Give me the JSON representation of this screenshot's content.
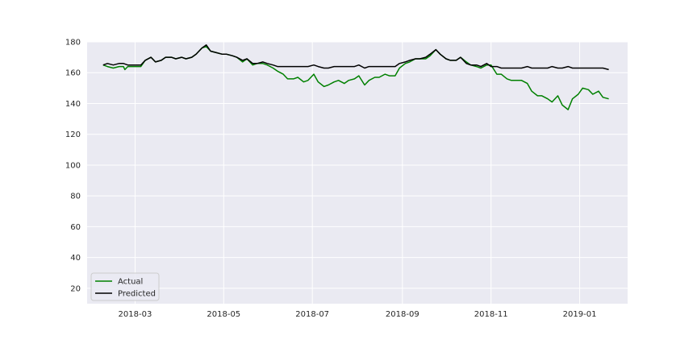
{
  "chart_data": {
    "type": "line",
    "title": "",
    "xlabel": "",
    "ylabel": "",
    "x_ticks": [
      "2018-03",
      "2018-05",
      "2018-07",
      "2018-09",
      "2018-11",
      "2019-01"
    ],
    "y_ticks": [
      20,
      40,
      60,
      80,
      100,
      120,
      140,
      160,
      180
    ],
    "xlim": [
      "2018-01-27",
      "2019-02-03"
    ],
    "ylim": [
      10,
      180
    ],
    "grid": true,
    "legend_position": "lower-left",
    "series": [
      {
        "name": "Actual",
        "color": "#008000",
        "points": [
          [
            "2018-02-07",
            165
          ],
          [
            "2018-02-10",
            164
          ],
          [
            "2018-02-14",
            163
          ],
          [
            "2018-02-18",
            164
          ],
          [
            "2018-02-21",
            164
          ],
          [
            "2018-02-22",
            162
          ],
          [
            "2018-02-24",
            164
          ],
          [
            "2018-02-28",
            164
          ],
          [
            "2018-03-05",
            164
          ],
          [
            "2018-03-08",
            168
          ],
          [
            "2018-03-12",
            170
          ],
          [
            "2018-03-15",
            167
          ],
          [
            "2018-03-19",
            168
          ],
          [
            "2018-03-22",
            170
          ],
          [
            "2018-03-26",
            170
          ],
          [
            "2018-03-29",
            169
          ],
          [
            "2018-04-02",
            170
          ],
          [
            "2018-04-05",
            169
          ],
          [
            "2018-04-09",
            170
          ],
          [
            "2018-04-12",
            172
          ],
          [
            "2018-04-16",
            176
          ],
          [
            "2018-04-19",
            177
          ],
          [
            "2018-04-22",
            174
          ],
          [
            "2018-04-26",
            173
          ],
          [
            "2018-04-30",
            172
          ],
          [
            "2018-05-03",
            172
          ],
          [
            "2018-05-07",
            171
          ],
          [
            "2018-05-10",
            170
          ],
          [
            "2018-05-14",
            167
          ],
          [
            "2018-05-17",
            169
          ],
          [
            "2018-05-21",
            165
          ],
          [
            "2018-05-24",
            166
          ],
          [
            "2018-05-28",
            166
          ],
          [
            "2018-05-31",
            165
          ],
          [
            "2018-06-04",
            163
          ],
          [
            "2018-06-07",
            161
          ],
          [
            "2018-06-11",
            159
          ],
          [
            "2018-06-14",
            156
          ],
          [
            "2018-06-18",
            156
          ],
          [
            "2018-06-21",
            157
          ],
          [
            "2018-06-25",
            154
          ],
          [
            "2018-06-28",
            155
          ],
          [
            "2018-07-02",
            159
          ],
          [
            "2018-07-05",
            154
          ],
          [
            "2018-07-09",
            151
          ],
          [
            "2018-07-12",
            152
          ],
          [
            "2018-07-16",
            154
          ],
          [
            "2018-07-19",
            155
          ],
          [
            "2018-07-23",
            153
          ],
          [
            "2018-07-26",
            155
          ],
          [
            "2018-07-30",
            156
          ],
          [
            "2018-08-02",
            158
          ],
          [
            "2018-08-06",
            152
          ],
          [
            "2018-08-09",
            155
          ],
          [
            "2018-08-13",
            157
          ],
          [
            "2018-08-16",
            157
          ],
          [
            "2018-08-20",
            159
          ],
          [
            "2018-08-23",
            158
          ],
          [
            "2018-08-27",
            158
          ],
          [
            "2018-08-30",
            163
          ],
          [
            "2018-09-03",
            166
          ],
          [
            "2018-09-06",
            167
          ],
          [
            "2018-09-10",
            169
          ],
          [
            "2018-09-13",
            169
          ],
          [
            "2018-09-17",
            169
          ],
          [
            "2018-09-20",
            171
          ],
          [
            "2018-09-24",
            175
          ],
          [
            "2018-09-27",
            172
          ],
          [
            "2018-10-01",
            169
          ],
          [
            "2018-10-04",
            168
          ],
          [
            "2018-10-08",
            168
          ],
          [
            "2018-10-11",
            170
          ],
          [
            "2018-10-15",
            167
          ],
          [
            "2018-10-18",
            165
          ],
          [
            "2018-10-22",
            164
          ],
          [
            "2018-10-25",
            163
          ],
          [
            "2018-10-29",
            165
          ],
          [
            "2018-11-01",
            165
          ],
          [
            "2018-11-05",
            159
          ],
          [
            "2018-11-08",
            159
          ],
          [
            "2018-11-12",
            156
          ],
          [
            "2018-11-15",
            155
          ],
          [
            "2018-11-19",
            155
          ],
          [
            "2018-11-22",
            155
          ],
          [
            "2018-11-26",
            153
          ],
          [
            "2018-11-29",
            148
          ],
          [
            "2018-12-03",
            145
          ],
          [
            "2018-12-06",
            145
          ],
          [
            "2018-12-10",
            143
          ],
          [
            "2018-12-13",
            141
          ],
          [
            "2018-12-17",
            145
          ],
          [
            "2018-12-20",
            139
          ],
          [
            "2018-12-24",
            136
          ],
          [
            "2018-12-27",
            143
          ],
          [
            "2018-12-31",
            146
          ],
          [
            "2019-01-03",
            150
          ],
          [
            "2019-01-07",
            149
          ],
          [
            "2019-01-10",
            146
          ],
          [
            "2019-01-14",
            148
          ],
          [
            "2019-01-17",
            144
          ],
          [
            "2019-01-21",
            143
          ]
        ]
      },
      {
        "name": "Predicted",
        "color": "#000000",
        "points": [
          [
            "2018-02-07",
            165
          ],
          [
            "2018-02-10",
            166
          ],
          [
            "2018-02-14",
            165
          ],
          [
            "2018-02-18",
            166
          ],
          [
            "2018-02-21",
            166
          ],
          [
            "2018-02-24",
            165
          ],
          [
            "2018-02-28",
            165
          ],
          [
            "2018-03-05",
            165
          ],
          [
            "2018-03-08",
            168
          ],
          [
            "2018-03-12",
            170
          ],
          [
            "2018-03-15",
            167
          ],
          [
            "2018-03-19",
            168
          ],
          [
            "2018-03-22",
            170
          ],
          [
            "2018-03-26",
            170
          ],
          [
            "2018-03-29",
            169
          ],
          [
            "2018-04-02",
            170
          ],
          [
            "2018-04-05",
            169
          ],
          [
            "2018-04-09",
            170
          ],
          [
            "2018-04-12",
            172
          ],
          [
            "2018-04-16",
            176
          ],
          [
            "2018-04-19",
            178
          ],
          [
            "2018-04-22",
            174
          ],
          [
            "2018-04-26",
            173
          ],
          [
            "2018-04-30",
            172
          ],
          [
            "2018-05-03",
            172
          ],
          [
            "2018-05-07",
            171
          ],
          [
            "2018-05-10",
            170
          ],
          [
            "2018-05-14",
            168
          ],
          [
            "2018-05-17",
            169
          ],
          [
            "2018-05-21",
            166
          ],
          [
            "2018-05-24",
            166
          ],
          [
            "2018-05-28",
            167
          ],
          [
            "2018-05-31",
            166
          ],
          [
            "2018-06-04",
            165
          ],
          [
            "2018-06-07",
            164
          ],
          [
            "2018-06-11",
            164
          ],
          [
            "2018-06-14",
            164
          ],
          [
            "2018-06-18",
            164
          ],
          [
            "2018-06-21",
            164
          ],
          [
            "2018-06-25",
            164
          ],
          [
            "2018-06-28",
            164
          ],
          [
            "2018-07-02",
            165
          ],
          [
            "2018-07-05",
            164
          ],
          [
            "2018-07-09",
            163
          ],
          [
            "2018-07-12",
            163
          ],
          [
            "2018-07-16",
            164
          ],
          [
            "2018-07-19",
            164
          ],
          [
            "2018-07-23",
            164
          ],
          [
            "2018-07-26",
            164
          ],
          [
            "2018-07-30",
            164
          ],
          [
            "2018-08-02",
            165
          ],
          [
            "2018-08-06",
            163
          ],
          [
            "2018-08-09",
            164
          ],
          [
            "2018-08-13",
            164
          ],
          [
            "2018-08-16",
            164
          ],
          [
            "2018-08-20",
            164
          ],
          [
            "2018-08-23",
            164
          ],
          [
            "2018-08-27",
            164
          ],
          [
            "2018-08-30",
            166
          ],
          [
            "2018-09-03",
            167
          ],
          [
            "2018-09-06",
            168
          ],
          [
            "2018-09-10",
            169
          ],
          [
            "2018-09-13",
            169
          ],
          [
            "2018-09-17",
            170
          ],
          [
            "2018-09-20",
            172
          ],
          [
            "2018-09-24",
            175
          ],
          [
            "2018-09-27",
            172
          ],
          [
            "2018-10-01",
            169
          ],
          [
            "2018-10-04",
            168
          ],
          [
            "2018-10-08",
            168
          ],
          [
            "2018-10-11",
            170
          ],
          [
            "2018-10-15",
            166
          ],
          [
            "2018-10-18",
            165
          ],
          [
            "2018-10-22",
            165
          ],
          [
            "2018-10-25",
            164
          ],
          [
            "2018-10-29",
            166
          ],
          [
            "2018-11-01",
            164
          ],
          [
            "2018-11-05",
            164
          ],
          [
            "2018-11-08",
            163
          ],
          [
            "2018-11-12",
            163
          ],
          [
            "2018-11-15",
            163
          ],
          [
            "2018-11-19",
            163
          ],
          [
            "2018-11-22",
            163
          ],
          [
            "2018-11-26",
            164
          ],
          [
            "2018-11-29",
            163
          ],
          [
            "2018-12-03",
            163
          ],
          [
            "2018-12-06",
            163
          ],
          [
            "2018-12-10",
            163
          ],
          [
            "2018-12-13",
            164
          ],
          [
            "2018-12-17",
            163
          ],
          [
            "2018-12-20",
            163
          ],
          [
            "2018-12-24",
            164
          ],
          [
            "2018-12-27",
            163
          ],
          [
            "2018-12-31",
            163
          ],
          [
            "2019-01-03",
            163
          ],
          [
            "2019-01-07",
            163
          ],
          [
            "2019-01-10",
            163
          ],
          [
            "2019-01-14",
            163
          ],
          [
            "2019-01-17",
            163
          ],
          [
            "2019-01-21",
            162
          ]
        ]
      }
    ]
  },
  "style": {
    "plot_background": "#EAEAF2",
    "grid_color": "#FFFFFF"
  }
}
